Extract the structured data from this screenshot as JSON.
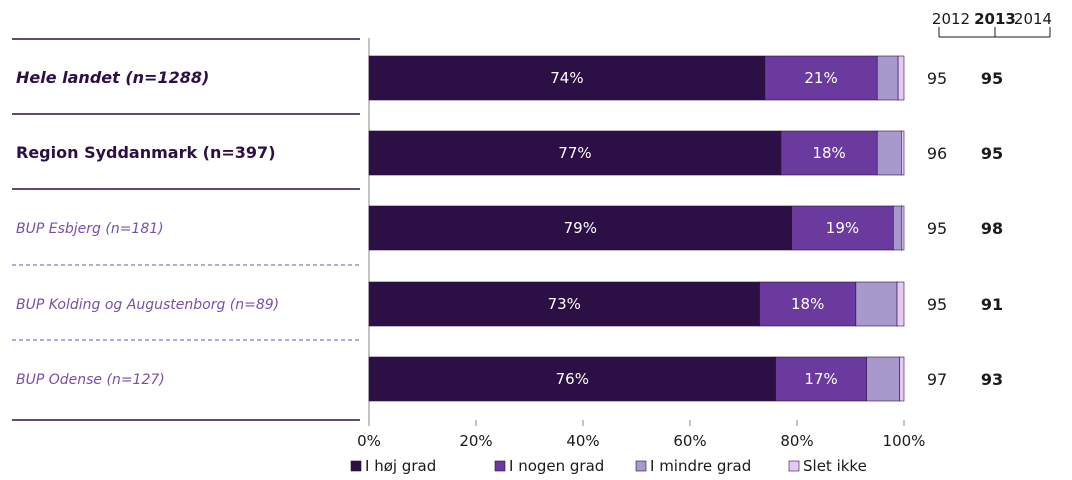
{
  "chart_data": {
    "type": "bar",
    "orientation": "horizontal",
    "stacked": true,
    "categories": [
      "Hele landet (n=1288)",
      "Region Syddanmark (n=397)",
      "BUP Esbjerg (n=181)",
      "BUP Kolding og Augustenborg (n=89)",
      "BUP Odense (n=127)"
    ],
    "series": [
      {
        "name": "I høj grad",
        "color": "#2b0f45",
        "values": [
          74,
          77,
          79,
          73,
          76
        ]
      },
      {
        "name": "I nogen grad",
        "color": "#6a3a9e",
        "values": [
          21,
          18,
          19,
          18,
          17
        ]
      },
      {
        "name": "I mindre grad",
        "color": "#a899cc",
        "values": [
          3.9,
          4.5,
          1.6,
          7.7,
          6.2
        ]
      },
      {
        "name": "Slet ikke",
        "color": "#e6c9f0",
        "values": [
          1.1,
          0.5,
          0.4,
          1.3,
          0.8
        ]
      }
    ],
    "data_labels": [
      [
        "74%",
        "21%"
      ],
      [
        "77%",
        "18%"
      ],
      [
        "79%",
        "19%"
      ],
      [
        "73%",
        "18%"
      ],
      [
        "76%",
        "17%"
      ]
    ],
    "xlim": [
      0,
      100
    ],
    "xticks": [
      "0%",
      "20%",
      "40%",
      "60%",
      "80%",
      "100%"
    ],
    "legend_position": "bottom",
    "year_headers": [
      "2012",
      "2013",
      "2014"
    ],
    "year_columns": [
      {
        "year": "2012",
        "values": [
          "95",
          "96",
          "95",
          "95",
          "97"
        ]
      },
      {
        "year": "2013",
        "values": [
          "95",
          "95",
          "98",
          "91",
          "93"
        ]
      }
    ],
    "label_styles": [
      "bold-italic",
      "bold",
      "italic",
      "italic",
      "italic"
    ],
    "label_colors": [
      "#2b0f45",
      "#2b0f45",
      "#7a4fa8",
      "#7a4fa8",
      "#7a4fa8"
    ]
  }
}
